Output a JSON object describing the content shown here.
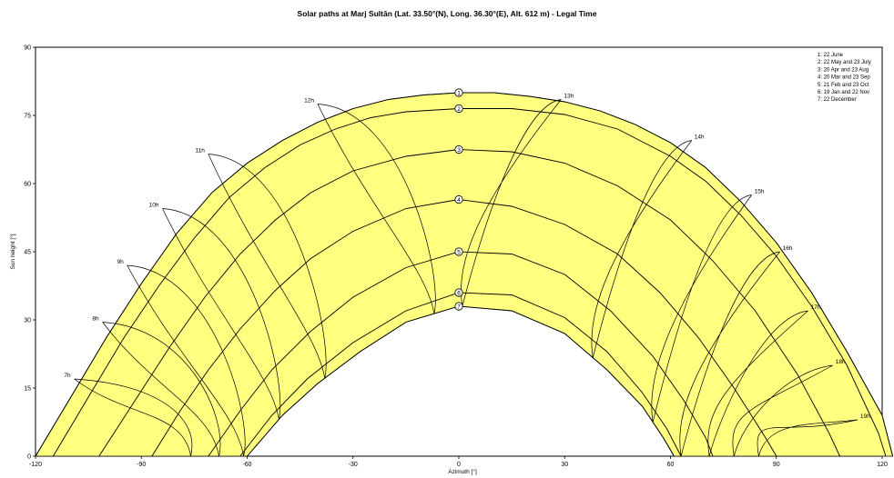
{
  "chart_data": {
    "type": "line",
    "title": "Solar paths at Marj Sultān (Lat. 33.50°(N), Long. 36.30°(E), Alt. 612 m) - Legal Time",
    "xlabel": "Azimuth [°]",
    "ylabel": "Sun height [°]",
    "xlim": [
      -120,
      120
    ],
    "ylim": [
      0,
      90
    ],
    "xticks": [
      "-120",
      "-90",
      "-60",
      "-30",
      "0",
      "30",
      "60",
      "90",
      "120"
    ],
    "yticks": [
      "0",
      "15",
      "30",
      "45",
      "60",
      "75",
      "90"
    ],
    "grid": false,
    "legend_position": "top-right",
    "colors": {
      "band_fill": "#ffff80",
      "line": "#000000",
      "background": "#ffffff"
    },
    "series": [
      {
        "num": "1",
        "name": "22 June",
        "points": [
          [
            -120,
            0
          ],
          [
            -110,
            13
          ],
          [
            -100,
            26
          ],
          [
            -90,
            38
          ],
          [
            -80,
            49
          ],
          [
            -70,
            58
          ],
          [
            -60,
            64.5
          ],
          [
            -50,
            69.5
          ],
          [
            -40,
            73.5
          ],
          [
            -30,
            76.5
          ],
          [
            -20,
            78.5
          ],
          [
            -10,
            79.5
          ],
          [
            0,
            80
          ],
          [
            10,
            80
          ],
          [
            20,
            79.2
          ],
          [
            30,
            78
          ],
          [
            40,
            76
          ],
          [
            50,
            73
          ],
          [
            60,
            69
          ],
          [
            70,
            63.5
          ],
          [
            80,
            56
          ],
          [
            90,
            47
          ],
          [
            100,
            36
          ],
          [
            110,
            23
          ],
          [
            120,
            9
          ],
          [
            123,
            0
          ]
        ]
      },
      {
        "num": "2",
        "name": "22 May and 23 July",
        "points": [
          [
            -115,
            0
          ],
          [
            -105,
            13
          ],
          [
            -95,
            26
          ],
          [
            -85,
            37.5
          ],
          [
            -75,
            48
          ],
          [
            -65,
            57
          ],
          [
            -55,
            63.5
          ],
          [
            -45,
            68.5
          ],
          [
            -35,
            72
          ],
          [
            -25,
            74.5
          ],
          [
            -15,
            75.8
          ],
          [
            0,
            76.5
          ],
          [
            15,
            76.5
          ],
          [
            30,
            75.2
          ],
          [
            45,
            72
          ],
          [
            60,
            66
          ],
          [
            70,
            60.5
          ],
          [
            80,
            53
          ],
          [
            90,
            44
          ],
          [
            100,
            33
          ],
          [
            110,
            20
          ],
          [
            119,
            5
          ],
          [
            121,
            0
          ]
        ]
      },
      {
        "num": "3",
        "name": "20 Apr and 23 Aug",
        "points": [
          [
            -102,
            0
          ],
          [
            -92,
            12
          ],
          [
            -82,
            24
          ],
          [
            -72,
            35
          ],
          [
            -62,
            44.5
          ],
          [
            -52,
            52
          ],
          [
            -42,
            58
          ],
          [
            -30,
            62.8
          ],
          [
            -15,
            66
          ],
          [
            0,
            67.5
          ],
          [
            15,
            67
          ],
          [
            30,
            64.5
          ],
          [
            45,
            59.5
          ],
          [
            60,
            52
          ],
          [
            72,
            43
          ],
          [
            84,
            32
          ],
          [
            96,
            18
          ],
          [
            105,
            5
          ],
          [
            108,
            0
          ]
        ]
      },
      {
        "num": "4",
        "name": "20 Mar and 23 Sep",
        "points": [
          [
            -87,
            0
          ],
          [
            -79,
            10
          ],
          [
            -71,
            19
          ],
          [
            -62,
            28
          ],
          [
            -52,
            36.5
          ],
          [
            -42,
            43.5
          ],
          [
            -30,
            49.5
          ],
          [
            -15,
            54.5
          ],
          [
            0,
            56.5
          ],
          [
            15,
            55
          ],
          [
            30,
            51
          ],
          [
            45,
            44.5
          ],
          [
            57,
            36
          ],
          [
            68,
            26
          ],
          [
            78,
            15
          ],
          [
            87,
            4
          ],
          [
            90,
            0
          ]
        ]
      },
      {
        "num": "5",
        "name": "21 Feb and 23 Oct",
        "points": [
          [
            -71,
            0
          ],
          [
            -62,
            10
          ],
          [
            -53,
            19
          ],
          [
            -42,
            27.5
          ],
          [
            -30,
            35
          ],
          [
            -15,
            41.5
          ],
          [
            0,
            45
          ],
          [
            15,
            44.5
          ],
          [
            30,
            40
          ],
          [
            43,
            32
          ],
          [
            55,
            22
          ],
          [
            64,
            12
          ],
          [
            70,
            4
          ],
          [
            72,
            0
          ]
        ]
      },
      {
        "num": "6",
        "name": "19 Jan and 22 Nov",
        "points": [
          [
            -62,
            0
          ],
          [
            -53,
            9
          ],
          [
            -43,
            17
          ],
          [
            -30,
            25
          ],
          [
            -15,
            32
          ],
          [
            0,
            36
          ],
          [
            15,
            35.5
          ],
          [
            30,
            30.5
          ],
          [
            42,
            23
          ],
          [
            52,
            14
          ],
          [
            59,
            6
          ],
          [
            63,
            0
          ]
        ]
      },
      {
        "num": "7",
        "name": "22 December",
        "points": [
          [
            -60,
            0
          ],
          [
            -50,
            9
          ],
          [
            -40,
            16
          ],
          [
            -28,
            23
          ],
          [
            -15,
            29.5
          ],
          [
            0,
            33
          ],
          [
            15,
            32
          ],
          [
            30,
            27
          ],
          [
            42,
            19
          ],
          [
            52,
            11
          ],
          [
            58,
            4
          ],
          [
            61,
            0
          ]
        ]
      }
    ],
    "hour_labels": [
      {
        "text": "7h",
        "x": -109,
        "y": 17
      },
      {
        "text": "8h",
        "x": -101,
        "y": 29.5
      },
      {
        "text": "9h",
        "x": -94,
        "y": 42
      },
      {
        "text": "10h",
        "x": -84,
        "y": 54.5
      },
      {
        "text": "11h",
        "x": -71,
        "y": 66.5
      },
      {
        "text": "12h",
        "x": -40,
        "y": 77.5
      },
      {
        "text": "13h",
        "x": 29,
        "y": 78.5
      },
      {
        "text": "14h",
        "x": 66,
        "y": 69.5
      },
      {
        "text": "15h",
        "x": 83,
        "y": 57.5
      },
      {
        "text": "16h",
        "x": 91,
        "y": 45
      },
      {
        "text": "17h",
        "x": 99,
        "y": 32
      },
      {
        "text": "18h",
        "x": 106,
        "y": 20
      },
      {
        "text": "19h",
        "x": 113,
        "y": 8
      }
    ],
    "legend": [
      "1: 22 June",
      "2: 22 May and 23 July",
      "3: 20 Apr and 23 Aug",
      "4: 20 Mar and 23 Sep",
      "5: 21 Feb and 23 Oct",
      "6: 19 Jan and 22 Nov",
      "7: 22 December"
    ]
  }
}
